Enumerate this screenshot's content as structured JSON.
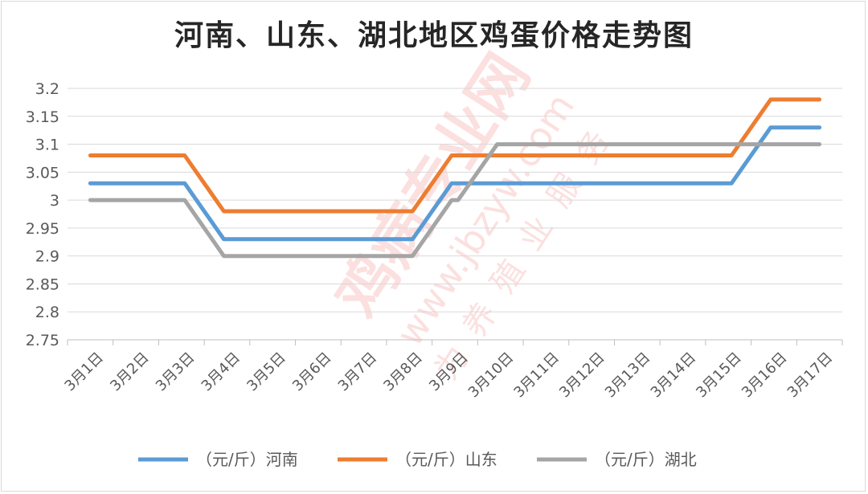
{
  "chart_data": {
    "type": "line",
    "title": "河南、山东、湖北地区鸡蛋价格走势图",
    "categories": [
      "3月1日",
      "3月2日",
      "3月3日",
      "3月4日",
      "3月5日",
      "3月6日",
      "3月7日",
      "3月8日",
      "3月9日",
      "3月10日",
      "3月11日",
      "3月12日",
      "3月13日",
      "3月14日",
      "3月15日",
      "3月16日",
      "3月17日"
    ],
    "yticks": [
      "2.75",
      "2.8",
      "2.85",
      "2.9",
      "2.95",
      "3",
      "3.05",
      "3.1",
      "3.15",
      "3.2"
    ],
    "ylim": [
      2.75,
      3.2
    ],
    "grid": true,
    "legend_position": "bottom",
    "series": [
      {
        "name": "（元/斤）河南",
        "color": "#5b9bd5",
        "values": [
          3.03,
          3.03,
          3.03,
          2.93,
          2.93,
          2.93,
          2.93,
          2.93,
          3.03,
          3.03,
          3.03,
          3.03,
          3.03,
          3.03,
          3.03,
          3.13,
          3.13
        ]
      },
      {
        "name": "（元/斤）山东",
        "color": "#ed7d31",
        "values": [
          3.08,
          3.08,
          3.08,
          2.98,
          2.98,
          2.98,
          2.98,
          2.98,
          3.08,
          3.08,
          3.08,
          3.08,
          3.08,
          3.08,
          3.08,
          3.18,
          3.18
        ]
      },
      {
        "name": "（元/斤）湖北",
        "color": "#a5a5a5",
        "values": [
          3.0,
          3.0,
          3.0,
          2.9,
          2.9,
          2.9,
          2.9,
          2.9,
          3.0,
          3.1,
          3.1,
          3.1,
          3.1,
          3.1,
          3.1,
          3.1,
          3.1
        ]
      }
    ]
  },
  "watermark": {
    "brand": "鸡病专业网",
    "url": "www.jbzyw.com",
    "slogan": "为养殖业服务"
  }
}
